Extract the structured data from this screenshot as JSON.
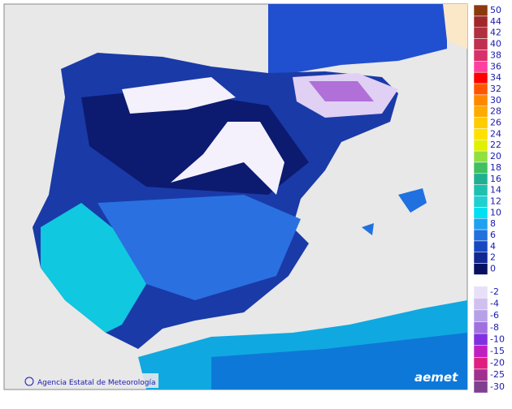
{
  "map": {
    "credit": "Agencia Estatal de Meteorología",
    "logo": "aemet",
    "legend": [
      {
        "label": "50",
        "color": "#8b3a0f"
      },
      {
        "label": "44",
        "color": "#a0282a"
      },
      {
        "label": "42",
        "color": "#b03040"
      },
      {
        "label": "40",
        "color": "#c03050"
      },
      {
        "label": "38",
        "color": "#d8306a"
      },
      {
        "label": "36",
        "color": "#ff40a0"
      },
      {
        "label": "34",
        "color": "#ff0000"
      },
      {
        "label": "32",
        "color": "#ff5500"
      },
      {
        "label": "30",
        "color": "#ff8800"
      },
      {
        "label": "28",
        "color": "#ffaa00"
      },
      {
        "label": "26",
        "color": "#ffcc00"
      },
      {
        "label": "24",
        "color": "#ffe000"
      },
      {
        "label": "22",
        "color": "#e0f000"
      },
      {
        "label": "20",
        "color": "#90e040"
      },
      {
        "label": "18",
        "color": "#40c060"
      },
      {
        "label": "16",
        "color": "#20b090"
      },
      {
        "label": "14",
        "color": "#20c0b0"
      },
      {
        "label": "12",
        "color": "#20d0d0"
      },
      {
        "label": "10",
        "color": "#00e0f0"
      },
      {
        "label": "8",
        "color": "#20a0f0"
      },
      {
        "label": "6",
        "color": "#2070e0"
      },
      {
        "label": "4",
        "color": "#1848c0"
      },
      {
        "label": "2",
        "color": "#102890"
      },
      {
        "label": "0",
        "color": "#081060"
      }
    ],
    "legend_negative": [
      {
        "label": "-2",
        "color": "#e8e0f8"
      },
      {
        "label": "-4",
        "color": "#d0c0f0"
      },
      {
        "label": "-6",
        "color": "#b8a0e8"
      },
      {
        "label": "-8",
        "color": "#a070e0"
      },
      {
        "label": "-10",
        "color": "#8030e0"
      },
      {
        "label": "-15",
        "color": "#c020c0"
      },
      {
        "label": "-20",
        "color": "#e02080"
      },
      {
        "label": "-25",
        "color": "#a03090"
      },
      {
        "label": "-30",
        "color": "#804090"
      }
    ]
  }
}
